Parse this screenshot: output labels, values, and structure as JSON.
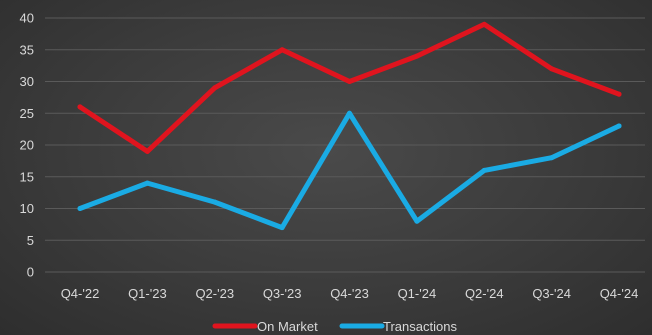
{
  "chart_data": {
    "type": "line",
    "title": "",
    "xlabel": "",
    "ylabel": "",
    "categories": [
      "Q4-'22",
      "Q1-'23",
      "Q2-'23",
      "Q3-'23",
      "Q4-'23",
      "Q1-'24",
      "Q2-'24",
      "Q3-'24",
      "Q4-'24"
    ],
    "ylim": [
      0,
      40
    ],
    "yticks": [
      "0",
      "5",
      "10",
      "15",
      "20",
      "25",
      "30",
      "35",
      "40"
    ],
    "grid": "horizontal",
    "legend_position": "bottom",
    "series": [
      {
        "name": "On Market",
        "color": "#e0141e",
        "values": [
          26,
          19,
          29,
          35,
          30,
          34,
          39,
          32,
          28
        ]
      },
      {
        "name": "Transactions",
        "color": "#1aabe4",
        "values": [
          10,
          14,
          11,
          7,
          25,
          8,
          16,
          18,
          23
        ]
      }
    ]
  }
}
